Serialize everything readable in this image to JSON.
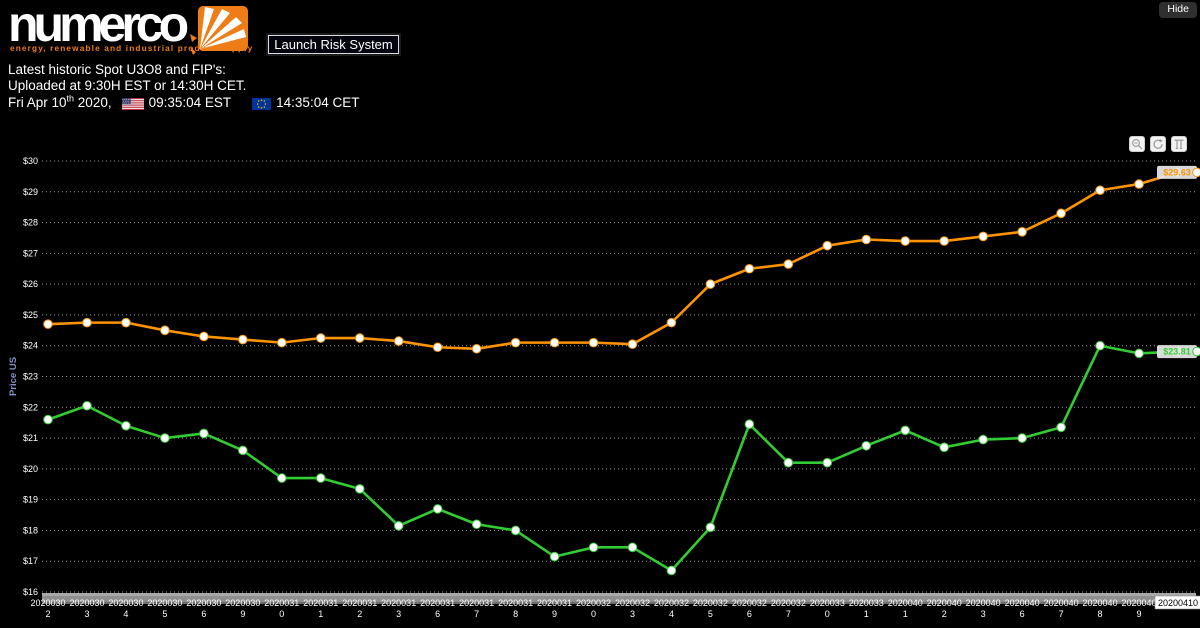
{
  "header": {
    "logo_text": "numerco",
    "tagline": "energy, renewable and industrial product supply",
    "launch_button_label": "Launch Risk System",
    "hide_button_label": "Hide"
  },
  "info": {
    "line1": "Latest historic Spot U3O8 and FIP's:",
    "line2": "Uploaded at 9:30H EST or 14:30H CET.",
    "date_main": "Fri Apr 10",
    "date_sup": "th",
    "date_tail": " 2020,",
    "us_time": "09:35:04 EST",
    "eu_time": "14:35:04 CET"
  },
  "chart": {
    "y_axis_title_color": "#8790c8",
    "grid_color": "#9b9b9b",
    "scrollbar_color": "#8f8f8f",
    "controls": [
      "zoom-out",
      "reset",
      "pan"
    ]
  },
  "chart_data": {
    "type": "line",
    "x_dates": [
      "20200302",
      "20200303",
      "20200304",
      "20200305",
      "20200306",
      "20200309",
      "20200310",
      "20200311",
      "20200312",
      "20200313",
      "20200316",
      "20200317",
      "20200318",
      "20200319",
      "20200320",
      "20200323",
      "20200324",
      "20200325",
      "20200326",
      "20200327",
      "20200330",
      "20200331",
      "20200401",
      "20200402",
      "20200403",
      "20200406",
      "20200407",
      "20200408",
      "20200409",
      "20200410"
    ],
    "series": [
      {
        "name": "Spot U3O8",
        "color": "#ff9400",
        "end_label": "$29.63",
        "values": [
          24.7,
          24.75,
          24.75,
          24.5,
          24.3,
          24.2,
          24.1,
          24.25,
          24.25,
          24.15,
          23.95,
          23.9,
          24.1,
          24.1,
          24.1,
          24.05,
          24.75,
          26.0,
          26.5,
          26.65,
          27.25,
          27.45,
          27.4,
          27.4,
          27.55,
          27.7,
          28.3,
          29.05,
          29.25,
          29.63
        ]
      },
      {
        "name": "FIP",
        "color": "#32cd32",
        "end_label": "$23.81",
        "values": [
          21.6,
          22.05,
          21.4,
          21.0,
          21.15,
          20.6,
          19.7,
          19.7,
          19.35,
          18.15,
          18.7,
          18.2,
          18.0,
          17.15,
          17.45,
          17.45,
          16.7,
          18.1,
          21.45,
          20.2,
          20.2,
          20.75,
          21.25,
          20.7,
          20.95,
          21.0,
          21.35,
          24.0,
          23.75,
          23.81
        ]
      }
    ],
    "ylabel": "Price US",
    "ylim": [
      16,
      30
    ],
    "ytick_step": 1,
    "ytick_prefix": "$",
    "grid": "horizontal-dotted",
    "legend": "none",
    "x_label_highlighted": "20200410"
  }
}
